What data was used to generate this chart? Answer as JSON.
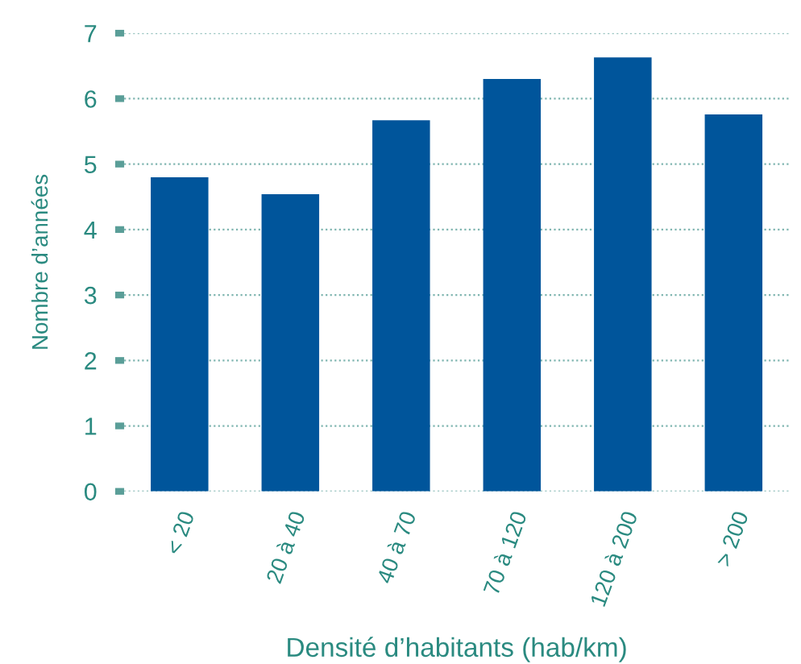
{
  "chart_data": {
    "type": "bar",
    "xlabel": "Densité d’habitants (hab/km)",
    "ylabel": "Nombre d’années",
    "categories": [
      "< 20",
      "20 à 40",
      "40 à 70",
      "70 à 120",
      "120 à 200",
      "> 200"
    ],
    "values": [
      4.8,
      4.54,
      5.67,
      6.3,
      6.63,
      5.76
    ],
    "color": "#00559b",
    "ylim": [
      0,
      7
    ],
    "yticks": [
      0,
      1,
      2,
      3,
      4,
      5,
      6,
      7
    ],
    "grid": "y"
  }
}
